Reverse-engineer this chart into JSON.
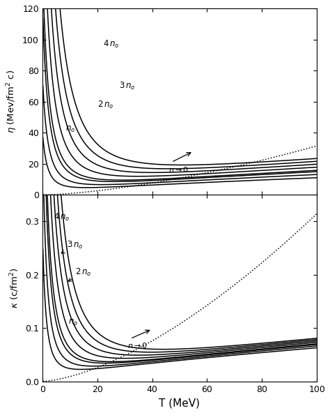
{
  "upper_ylabel": "$\\eta$ (Mev/fm$^2$ c)",
  "lower_ylabel": "$\\kappa$ (c/fm$^2$)",
  "xlabel": "T (MeV)",
  "upper_ylim": [
    0,
    120
  ],
  "lower_ylim": [
    0,
    0.35
  ],
  "xlim": [
    0,
    100
  ],
  "upper_yticks": [
    0,
    20,
    40,
    60,
    80,
    100,
    120
  ],
  "lower_yticks": [
    0,
    0.1,
    0.2,
    0.3
  ],
  "xticks": [
    0,
    20,
    40,
    60,
    80,
    100
  ],
  "background_color": "#ffffff",
  "line_color": "#000000"
}
